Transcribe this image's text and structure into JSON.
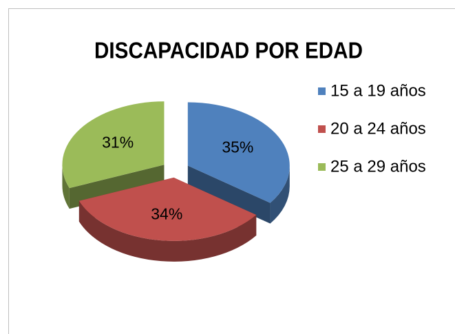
{
  "chart_data": {
    "type": "pie",
    "title": "DISCAPACIDAD POR EDAD",
    "categories": [
      "15 a 19 años",
      "20 a 24 años",
      "25 a 29 años"
    ],
    "values": [
      35,
      34,
      31
    ],
    "value_labels": [
      "35%",
      "34%",
      "31%"
    ],
    "colors": [
      "#4f81bd",
      "#c0504d",
      "#9bbb59"
    ],
    "legend": "right"
  }
}
